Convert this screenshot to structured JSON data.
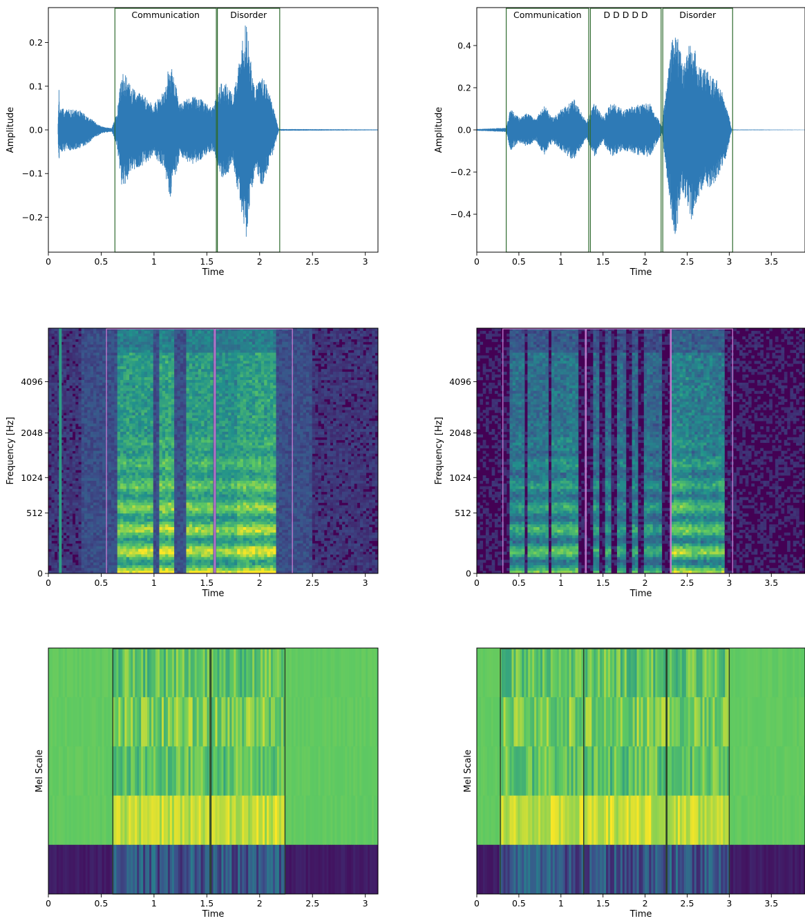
{
  "chart_data": [
    {
      "type": "line",
      "panel": "waveform-left",
      "xlabel": "Time",
      "ylabel": "Amplitude",
      "xlim": [
        0,
        3.12
      ],
      "ylim": [
        -0.28,
        0.28
      ],
      "xticks": [
        0,
        0.5,
        1,
        1.5,
        2,
        2.5,
        3
      ],
      "xtick_labels": [
        "0",
        "0.5",
        "1",
        "1.5",
        "2",
        "2.5",
        "3"
      ],
      "yticks": [
        -0.2,
        -0.1,
        0.0,
        0.1,
        0.2
      ],
      "ytick_labels": [
        "−0.2",
        "−0.1",
        "0.0",
        "0.1",
        "0.2"
      ],
      "line_color": "#2e7ab6",
      "box_color": "#2f6b2f",
      "envelope": [
        {
          "t": 0.09,
          "a": 0.0
        },
        {
          "t": 0.1,
          "a": 0.1
        },
        {
          "t": 0.105,
          "a": 0.05
        },
        {
          "t": 0.3,
          "a": 0.045
        },
        {
          "t": 0.5,
          "a": 0.008
        },
        {
          "t": 0.6,
          "a": 0.004
        },
        {
          "t": 0.65,
          "a": 0.04
        },
        {
          "t": 0.7,
          "a": 0.14
        },
        {
          "t": 0.78,
          "a": 0.1
        },
        {
          "t": 0.9,
          "a": 0.08
        },
        {
          "t": 1.0,
          "a": 0.06
        },
        {
          "t": 1.1,
          "a": 0.09
        },
        {
          "t": 1.15,
          "a": 0.16
        },
        {
          "t": 1.25,
          "a": 0.06
        },
        {
          "t": 1.35,
          "a": 0.08
        },
        {
          "t": 1.45,
          "a": 0.07
        },
        {
          "t": 1.55,
          "a": 0.05
        },
        {
          "t": 1.65,
          "a": 0.12
        },
        {
          "t": 1.75,
          "a": 0.08
        },
        {
          "t": 1.87,
          "a": 0.25
        },
        {
          "t": 1.95,
          "a": 0.1
        },
        {
          "t": 2.03,
          "a": 0.13
        },
        {
          "t": 2.12,
          "a": 0.06
        },
        {
          "t": 2.18,
          "a": 0.002
        },
        {
          "t": 3.12,
          "a": 0.001
        }
      ],
      "segments": [
        {
          "label": "Communication",
          "start": 0.63,
          "end": 1.59
        },
        {
          "label": "Disorder",
          "start": 1.6,
          "end": 2.19
        }
      ]
    },
    {
      "type": "line",
      "panel": "waveform-right",
      "xlabel": "Time",
      "ylabel": "Amplitude",
      "xlim": [
        0,
        3.9
      ],
      "ylim": [
        -0.58,
        0.58
      ],
      "xticks": [
        0,
        0.5,
        1,
        1.5,
        2,
        2.5,
        3,
        3.5
      ],
      "xtick_labels": [
        "0",
        "0.5",
        "1",
        "1.5",
        "2",
        "2.5",
        "3",
        "3.5"
      ],
      "yticks": [
        -0.4,
        -0.2,
        0.0,
        0.2,
        0.4
      ],
      "ytick_labels": [
        "−0.4",
        "−0.2",
        "0.0",
        "0.2",
        "0.4"
      ],
      "line_color": "#2e7ab6",
      "box_color": "#2f6b2f",
      "envelope": [
        {
          "t": 0.0,
          "a": 0.004
        },
        {
          "t": 0.35,
          "a": 0.01
        },
        {
          "t": 0.4,
          "a": 0.1
        },
        {
          "t": 0.5,
          "a": 0.06
        },
        {
          "t": 0.6,
          "a": 0.08
        },
        {
          "t": 0.7,
          "a": 0.05
        },
        {
          "t": 0.8,
          "a": 0.12
        },
        {
          "t": 0.9,
          "a": 0.06
        },
        {
          "t": 1.15,
          "a": 0.15
        },
        {
          "t": 1.3,
          "a": 0.04
        },
        {
          "t": 1.4,
          "a": 0.13
        },
        {
          "t": 1.5,
          "a": 0.06
        },
        {
          "t": 1.6,
          "a": 0.13
        },
        {
          "t": 1.75,
          "a": 0.1
        },
        {
          "t": 1.9,
          "a": 0.12
        },
        {
          "t": 2.05,
          "a": 0.13
        },
        {
          "t": 2.2,
          "a": 0.02
        },
        {
          "t": 2.35,
          "a": 0.53
        },
        {
          "t": 2.45,
          "a": 0.3
        },
        {
          "t": 2.55,
          "a": 0.44
        },
        {
          "t": 2.65,
          "a": 0.3
        },
        {
          "t": 2.75,
          "a": 0.28
        },
        {
          "t": 2.85,
          "a": 0.24
        },
        {
          "t": 2.95,
          "a": 0.15
        },
        {
          "t": 3.03,
          "a": 0.002
        },
        {
          "t": 3.9,
          "a": 0.001
        }
      ],
      "segments": [
        {
          "label": "Communication",
          "start": 0.35,
          "end": 1.33
        },
        {
          "label": "D D D D D",
          "start": 1.35,
          "end": 2.19
        },
        {
          "label": "Disorder",
          "start": 2.21,
          "end": 3.04
        }
      ]
    },
    {
      "type": "heatmap",
      "panel": "spectrogram-left",
      "xlabel": "Time",
      "ylabel": "Frequency [Hz]",
      "xlim": [
        0,
        3.12
      ],
      "yscale": "log2",
      "yticks": [
        0,
        512,
        1024,
        2048,
        4096
      ],
      "ytick_labels": [
        "0",
        "512",
        "1024",
        "2048",
        "4096"
      ],
      "xticks": [
        0,
        0.5,
        1,
        1.5,
        2,
        2.5,
        3
      ],
      "xtick_labels": [
        "0",
        "0.5",
        "1",
        "1.5",
        "2",
        "2.5",
        "3"
      ],
      "colormap": [
        "#440154",
        "#3b528b",
        "#21918c",
        "#5ec962",
        "#fde725"
      ],
      "box_color": "#c77ad1",
      "voiced": [
        {
          "start": 0.65,
          "end": 1.0,
          "level": 0.85
        },
        {
          "start": 1.05,
          "end": 1.2,
          "level": 0.95
        },
        {
          "start": 1.3,
          "end": 1.55,
          "level": 0.85
        },
        {
          "start": 1.6,
          "end": 1.8,
          "level": 0.75
        },
        {
          "start": 1.8,
          "end": 2.15,
          "level": 0.9
        }
      ],
      "segments": [
        {
          "start": 0.55,
          "end": 1.57
        },
        {
          "start": 1.58,
          "end": 2.31
        }
      ]
    },
    {
      "type": "heatmap",
      "panel": "spectrogram-right",
      "xlabel": "Time",
      "ylabel": "Frequency [Hz]",
      "xlim": [
        0,
        3.9
      ],
      "yscale": "log2",
      "yticks": [
        0,
        512,
        1024,
        2048,
        4096
      ],
      "ytick_labels": [
        "0",
        "512",
        "1024",
        "2048",
        "4096"
      ],
      "xticks": [
        0,
        0.5,
        1,
        1.5,
        2,
        2.5,
        3,
        3.5
      ],
      "xtick_labels": [
        "0",
        "0.5",
        "1",
        "1.5",
        "2",
        "2.5",
        "3",
        "3.5"
      ],
      "colormap": [
        "#440154",
        "#3b528b",
        "#21918c",
        "#5ec962",
        "#fde725"
      ],
      "box_color": "#c77ad1",
      "voiced": [
        {
          "start": 0.38,
          "end": 0.55,
          "level": 0.7
        },
        {
          "start": 0.62,
          "end": 0.85,
          "level": 0.75
        },
        {
          "start": 0.9,
          "end": 1.2,
          "level": 0.8
        },
        {
          "start": 1.38,
          "end": 1.45,
          "level": 0.65
        },
        {
          "start": 1.52,
          "end": 1.6,
          "level": 0.65
        },
        {
          "start": 1.68,
          "end": 1.76,
          "level": 0.65
        },
        {
          "start": 1.84,
          "end": 1.92,
          "level": 0.65
        },
        {
          "start": 2.0,
          "end": 2.08,
          "level": 0.65
        },
        {
          "start": 2.1,
          "end": 2.2,
          "level": 0.6
        },
        {
          "start": 2.32,
          "end": 2.55,
          "level": 0.95
        },
        {
          "start": 2.55,
          "end": 2.95,
          "level": 0.85
        }
      ],
      "segments": [
        {
          "start": 0.31,
          "end": 1.29
        },
        {
          "start": 1.3,
          "end": 2.3
        },
        {
          "start": 2.31,
          "end": 3.04
        }
      ]
    },
    {
      "type": "heatmap",
      "panel": "mel-left",
      "xlabel": "Time",
      "ylabel": "Mel Scale",
      "xlim": [
        0,
        3.12
      ],
      "xticks": [
        0,
        0.5,
        1,
        1.5,
        2,
        2.5,
        3
      ],
      "xtick_labels": [
        "0",
        "0.5",
        "1",
        "1.5",
        "2",
        "2.5",
        "3"
      ],
      "colormap": [
        "#440154",
        "#3b528b",
        "#21918c",
        "#5ec962",
        "#fde725"
      ],
      "bands": 5,
      "box_color": "#2a3f2a",
      "segments": [
        {
          "start": 0.61,
          "end": 1.53
        },
        {
          "start": 1.54,
          "end": 2.24
        }
      ]
    },
    {
      "type": "heatmap",
      "panel": "mel-right",
      "xlabel": "Time",
      "ylabel": "Mel Scale",
      "xlim": [
        0,
        3.9
      ],
      "xticks": [
        0,
        0.5,
        1,
        1.5,
        2,
        2.5,
        3,
        3.5
      ],
      "xtick_labels": [
        "0",
        "0.5",
        "1",
        "1.5",
        "2",
        "2.5",
        "3",
        "3.5"
      ],
      "colormap": [
        "#440154",
        "#3b528b",
        "#21918c",
        "#5ec962",
        "#fde725"
      ],
      "bands": 5,
      "box_color": "#2a3f2a",
      "segments": [
        {
          "start": 0.28,
          "end": 1.27
        },
        {
          "start": 1.27,
          "end": 2.25
        },
        {
          "start": 2.26,
          "end": 3.0
        }
      ]
    }
  ]
}
